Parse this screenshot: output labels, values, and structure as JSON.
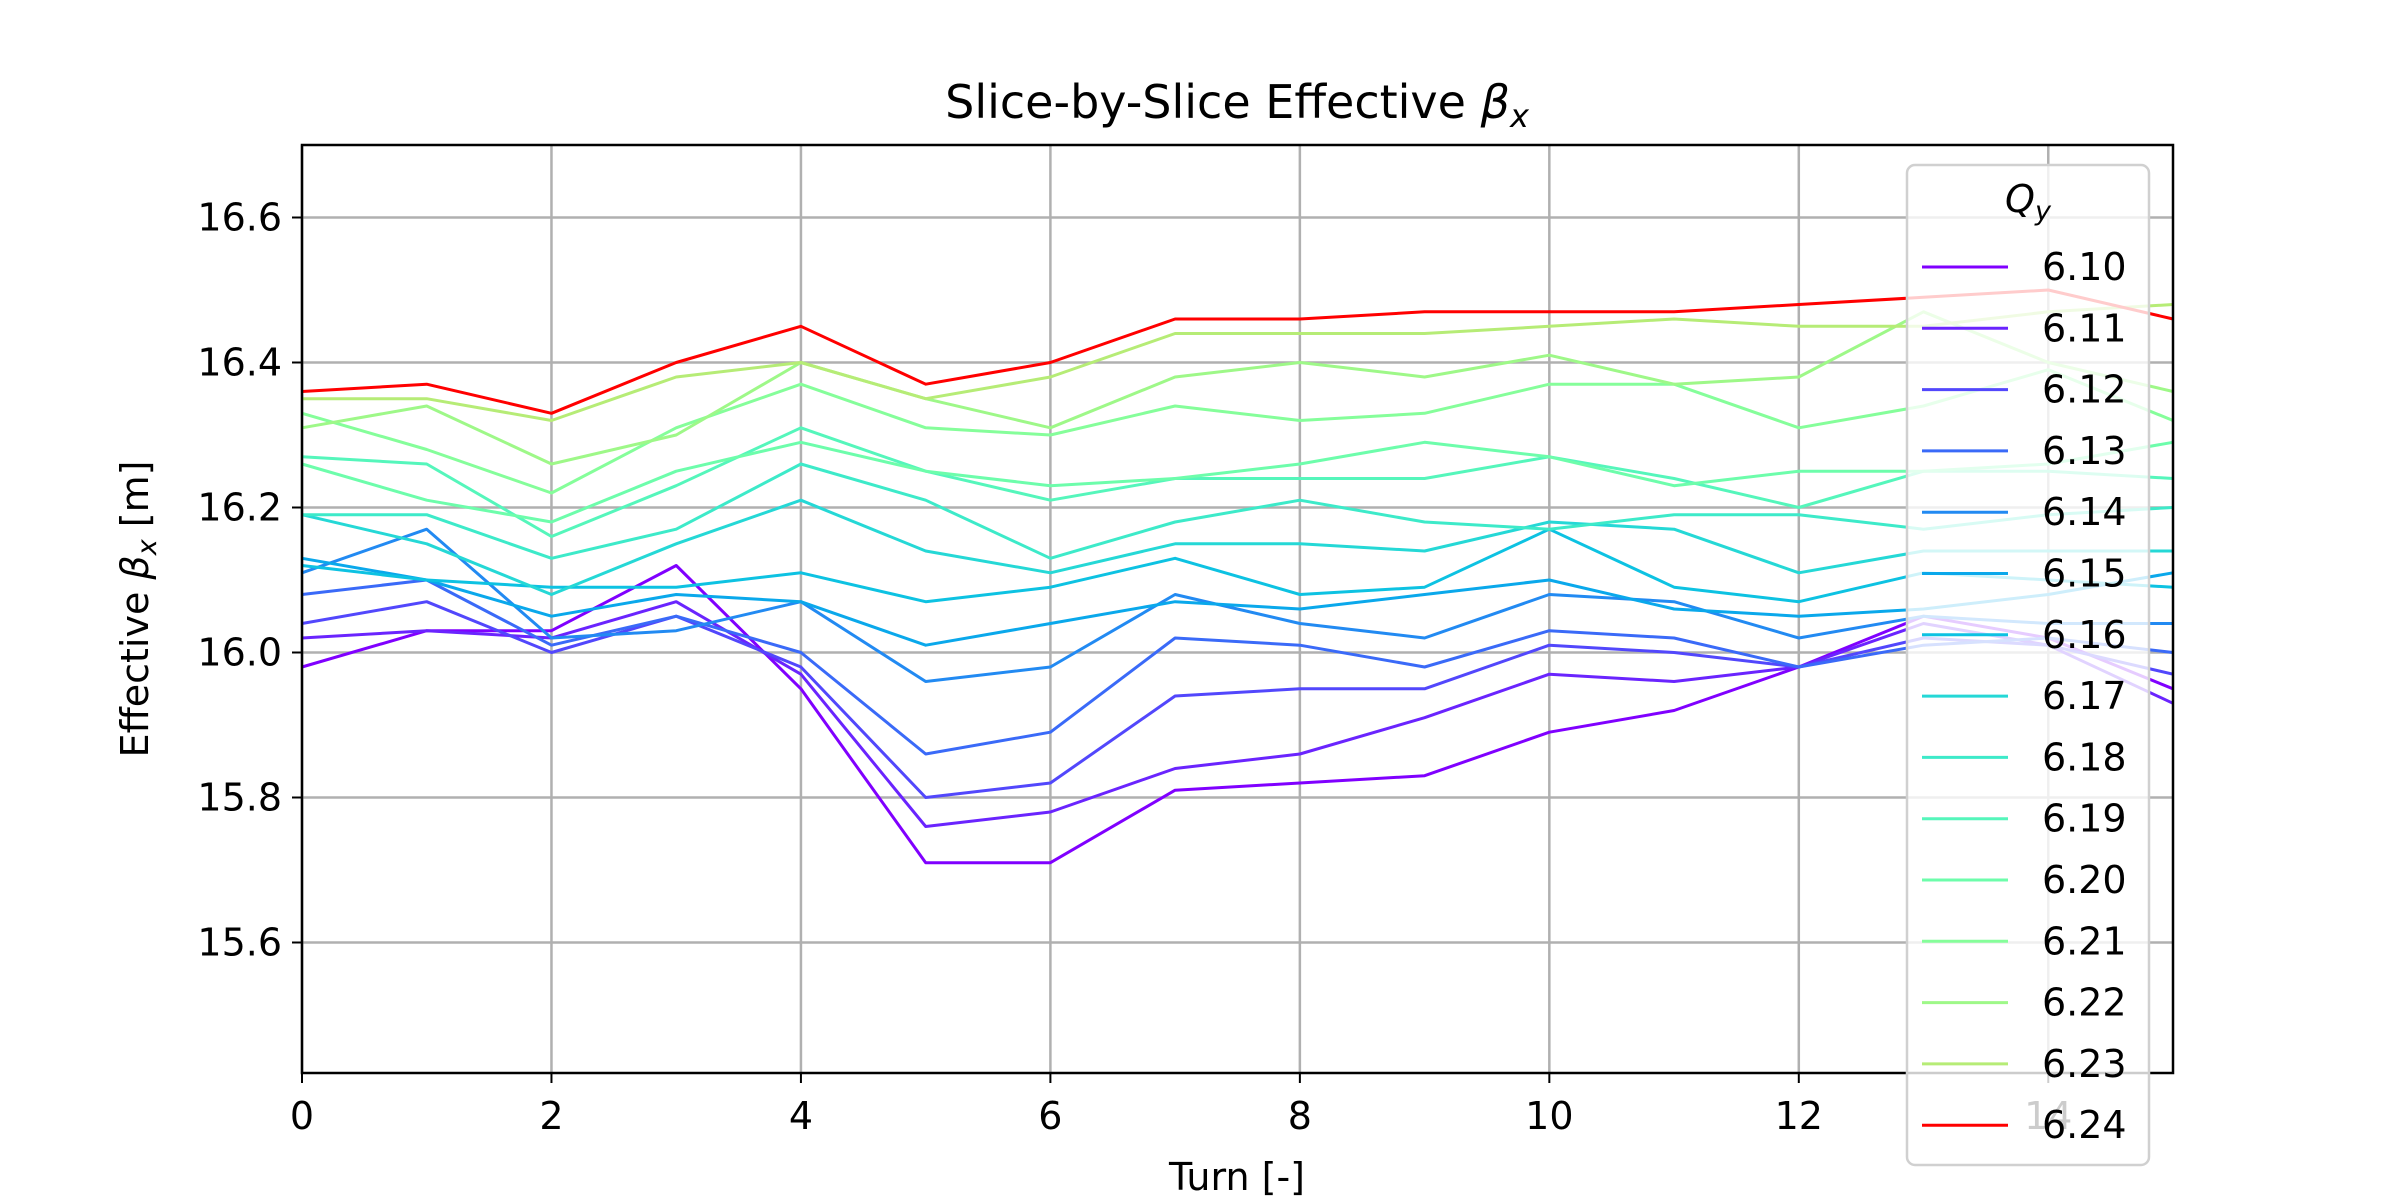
{
  "chart_data": {
    "type": "line",
    "title_prefix": "Slice-by-Slice Effective ",
    "title_symbol": "β",
    "title_subscript": "x",
    "xlabel": "Turn [-]",
    "ylabel_prefix": "Effective ",
    "ylabel_symbol": "β",
    "ylabel_subscript": "x",
    "ylabel_suffix": " [m]",
    "xlim": [
      0,
      15
    ],
    "ylim": [
      15.42,
      16.7
    ],
    "xticks": [
      0,
      2,
      4,
      6,
      8,
      10,
      12,
      14
    ],
    "yticks": [
      15.6,
      15.8,
      16.0,
      16.2,
      16.4,
      16.6
    ],
    "ytick_labels": [
      "15.6",
      "15.8",
      "16.0",
      "16.2",
      "16.4",
      "16.6"
    ],
    "grid": true,
    "legend": {
      "title_symbol": "Q",
      "title_subscript": "y",
      "placement": "upper right"
    },
    "x": [
      0,
      1,
      2,
      3,
      4,
      5,
      6,
      7,
      8,
      9,
      10,
      11,
      12,
      13,
      14,
      15
    ],
    "series": [
      {
        "name": "6.10",
        "color": "#8000ff",
        "values": [
          15.98,
          16.03,
          16.03,
          16.12,
          15.95,
          15.71,
          15.71,
          15.81,
          15.82,
          15.83,
          15.89,
          15.92,
          15.98,
          16.05,
          16.02,
          15.95
        ]
      },
      {
        "name": "6.11",
        "color": "#6a24fe",
        "values": [
          16.02,
          16.03,
          16.02,
          16.07,
          15.97,
          15.76,
          15.78,
          15.84,
          15.86,
          15.91,
          15.97,
          15.96,
          15.98,
          16.04,
          16.01,
          15.93
        ]
      },
      {
        "name": "6.12",
        "color": "#5247fc",
        "values": [
          16.04,
          16.07,
          16.0,
          16.05,
          15.98,
          15.8,
          15.82,
          15.94,
          15.95,
          15.95,
          16.01,
          16.0,
          15.98,
          16.02,
          16.01,
          15.97
        ]
      },
      {
        "name": "6.13",
        "color": "#3a6af8",
        "values": [
          16.08,
          16.1,
          16.01,
          16.05,
          16.0,
          15.86,
          15.89,
          16.02,
          16.01,
          15.98,
          16.03,
          16.02,
          15.98,
          16.01,
          16.02,
          16.0
        ]
      },
      {
        "name": "6.14",
        "color": "#228af2",
        "values": [
          16.11,
          16.17,
          16.02,
          16.03,
          16.07,
          15.96,
          15.98,
          16.08,
          16.04,
          16.02,
          16.08,
          16.07,
          16.02,
          16.05,
          16.04,
          16.04
        ]
      },
      {
        "name": "6.15",
        "color": "#0aa8eb",
        "values": [
          16.13,
          16.1,
          16.05,
          16.08,
          16.07,
          16.01,
          16.04,
          16.07,
          16.06,
          16.08,
          16.1,
          16.06,
          16.05,
          16.06,
          16.08,
          16.11
        ]
      },
      {
        "name": "6.16",
        "color": "#0dc2e2",
        "values": [
          16.12,
          16.1,
          16.09,
          16.09,
          16.11,
          16.07,
          16.09,
          16.13,
          16.08,
          16.09,
          16.17,
          16.09,
          16.07,
          16.11,
          16.1,
          16.09
        ]
      },
      {
        "name": "6.17",
        "color": "#25d8d6",
        "values": [
          16.19,
          16.15,
          16.08,
          16.15,
          16.21,
          16.14,
          16.11,
          16.15,
          16.15,
          16.14,
          16.18,
          16.17,
          16.11,
          16.14,
          16.14,
          16.14
        ]
      },
      {
        "name": "6.18",
        "color": "#3deac9",
        "values": [
          16.19,
          16.19,
          16.13,
          16.17,
          16.26,
          16.21,
          16.13,
          16.18,
          16.21,
          16.18,
          16.17,
          16.19,
          16.19,
          16.17,
          16.19,
          16.2
        ]
      },
      {
        "name": "6.19",
        "color": "#55f6bb",
        "values": [
          16.27,
          16.26,
          16.16,
          16.23,
          16.31,
          16.25,
          16.21,
          16.24,
          16.24,
          16.24,
          16.27,
          16.24,
          16.2,
          16.25,
          16.25,
          16.24
        ]
      },
      {
        "name": "6.20",
        "color": "#6dfdab",
        "values": [
          16.26,
          16.21,
          16.18,
          16.25,
          16.29,
          16.25,
          16.23,
          16.24,
          16.26,
          16.29,
          16.27,
          16.23,
          16.25,
          16.25,
          16.26,
          16.29
        ]
      },
      {
        "name": "6.21",
        "color": "#85fe9a",
        "values": [
          16.33,
          16.28,
          16.22,
          16.31,
          16.37,
          16.31,
          16.3,
          16.34,
          16.32,
          16.33,
          16.37,
          16.37,
          16.31,
          16.34,
          16.39,
          16.32
        ]
      },
      {
        "name": "6.22",
        "color": "#9ef888",
        "values": [
          16.31,
          16.34,
          16.26,
          16.3,
          16.4,
          16.35,
          16.31,
          16.38,
          16.4,
          16.38,
          16.41,
          16.37,
          16.38,
          16.47,
          16.4,
          16.36
        ]
      },
      {
        "name": "6.23",
        "color": "#b6ec76",
        "values": [
          16.35,
          16.35,
          16.32,
          16.38,
          16.4,
          16.35,
          16.38,
          16.44,
          16.44,
          16.44,
          16.45,
          16.46,
          16.45,
          16.45,
          16.47,
          16.48
        ]
      },
      {
        "name": "6.24",
        "color": "#ff0000",
        "values": [
          16.36,
          16.37,
          16.33,
          16.4,
          16.45,
          16.37,
          16.4,
          16.46,
          16.46,
          16.47,
          16.47,
          16.47,
          16.48,
          16.49,
          16.5,
          16.46
        ]
      }
    ]
  }
}
